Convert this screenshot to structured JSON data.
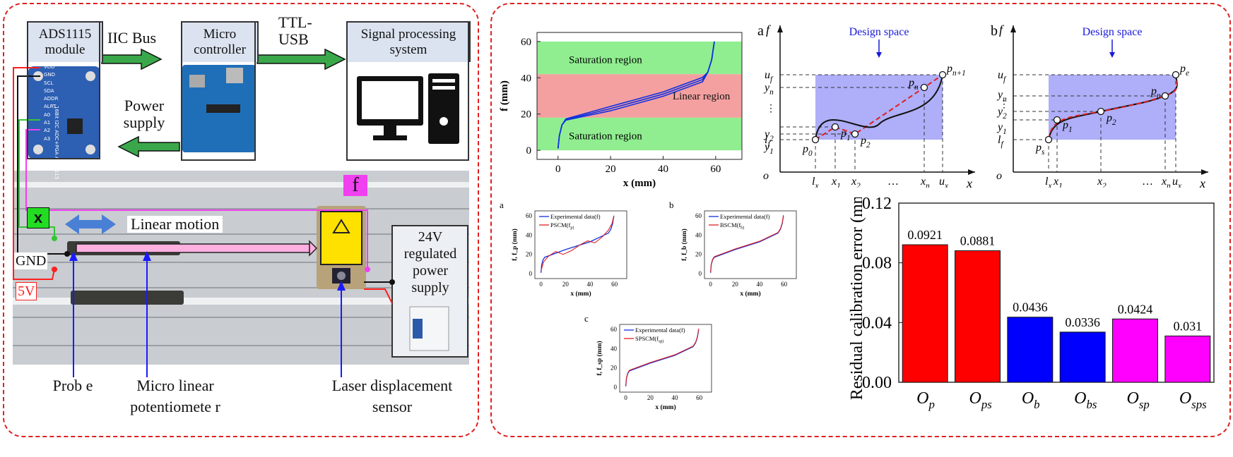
{
  "left": {
    "adc_box": "ADS1115 module",
    "mcu_box": "Micro controller",
    "signal_box": "Signal processing system",
    "iic_label": "IIC Bus",
    "ttl_label": "TTL-USB",
    "power_label": "Power supply",
    "x_tag": "x",
    "f_tag": "f",
    "motion_label": "Linear motion",
    "gnd_label": "GND",
    "v5_label": "5V",
    "psu_label": "24V regulated power supply",
    "probe_label": "Prob e",
    "pot_label": "Micro linear potentiomete r",
    "laser_label": "Laser displacement sensor",
    "adc_pins": [
      "VDD",
      "GND",
      "SCL",
      "SDA",
      "ADDR",
      "ALRT",
      "A0",
      "A1",
      "A2",
      "A3"
    ],
    "adc_chip_text": "16Bit I2C ADC+PGA ADS1115"
  },
  "top_chart": {
    "xlabel": "x (mm)",
    "ylabel": "f (mm)",
    "xticks": [
      "0",
      "20",
      "40",
      "60"
    ],
    "yticks": [
      "0",
      "20",
      "40",
      "60"
    ],
    "regions": [
      "Saturation region",
      "Linear region",
      "Saturation region"
    ]
  },
  "schem_a": {
    "letter": "a",
    "design_space": "Design space",
    "f_axis": "f",
    "x_axis": "x",
    "origin": "o",
    "y_labels": [
      "u_f",
      "y_n",
      "⋮",
      "y_2",
      "y_1",
      "l_f"
    ],
    "x_labels": [
      "l_x",
      "x_1",
      "x_2",
      "…",
      "x_n",
      "u_x"
    ],
    "points": [
      "p_0",
      "p_1",
      "p_2",
      "p_n",
      "p_{n+1}"
    ]
  },
  "schem_b": {
    "letter": "b",
    "design_space": "Design space",
    "f_axis": "f",
    "x_axis": "x",
    "origin": "o",
    "y_labels": [
      "u_f",
      "y_n",
      "⋮",
      "y_2",
      "y_1",
      "l_f"
    ],
    "x_labels": [
      "l_x",
      "x_1",
      "x_2",
      "…",
      "x_n",
      "u_x"
    ],
    "points": [
      "p_s",
      "p_1",
      "p_2",
      "p_n",
      "p_e"
    ]
  },
  "small_charts": [
    {
      "letter": "a",
      "legend1": "Experimental data(f)",
      "legend2": "PSCM(f_p)",
      "ylabel": "f, f_p (mm)",
      "xlabel": "x (mm)",
      "xticks": [
        "0",
        "20",
        "40",
        "60"
      ],
      "yticks": [
        "0",
        "20",
        "40",
        "60"
      ]
    },
    {
      "letter": "b",
      "legend1": "Experimental data(f)",
      "legend2": "BSCM(f_b)",
      "ylabel": "f, f_b (mm)",
      "xlabel": "x (mm)",
      "xticks": [
        "0",
        "20",
        "40",
        "60"
      ],
      "yticks": [
        "0",
        "20",
        "40",
        "60"
      ]
    },
    {
      "letter": "c",
      "legend1": "Experimental data(f)",
      "legend2": "SPSCM(f_sp)",
      "ylabel": "f, f_sp (mm)",
      "xlabel": "x (mm)",
      "xticks": [
        "0",
        "20",
        "40",
        "60"
      ],
      "yticks": [
        "0",
        "20",
        "40",
        "60"
      ]
    }
  ],
  "chart_data": {
    "type": "bar",
    "categories": [
      "O_p",
      "O_ps",
      "O_b",
      "O_bs",
      "O_sp",
      "O_sps"
    ],
    "values": [
      0.0921,
      0.0881,
      0.0436,
      0.0336,
      0.0424,
      0.031
    ],
    "value_labels": [
      "0.0921",
      "0.0881",
      "0.0436",
      "0.0336",
      "0.0424",
      "0.031"
    ],
    "colors": [
      "#ff0000",
      "#ff0000",
      "#0000ff",
      "#0000ff",
      "#ff00ff",
      "#ff00ff"
    ],
    "ylabel": "Residual calibration error (mm)",
    "ylim": [
      0,
      0.12
    ],
    "yticks": [
      "0.00",
      "0.04",
      "0.08",
      "0.12"
    ]
  }
}
